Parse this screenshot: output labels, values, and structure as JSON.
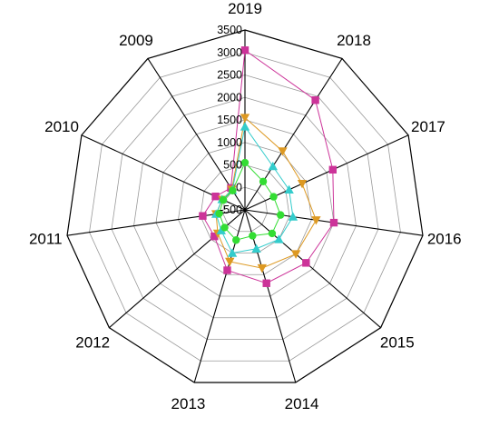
{
  "chart_data": {
    "type": "radar",
    "categories": [
      "2019",
      "2018",
      "2017",
      "2016",
      "2015",
      "2014",
      "2013",
      "2012",
      "2011",
      "2010",
      "2009"
    ],
    "ticks": [
      "-500",
      "0",
      "500",
      "1000",
      "1500",
      "2000",
      "2500",
      "3000",
      "3500"
    ],
    "rlim": [
      -500,
      3500
    ],
    "grid": true,
    "legend": "none",
    "series": [
      {
        "color": "#cc3399",
        "marker": "square",
        "values": [
          3050,
          2400,
          1650,
          1500,
          1300,
          1200,
          900,
          400,
          450,
          220,
          80
        ]
      },
      {
        "color": "#dd9922",
        "marker": "triangle-down",
        "values": [
          1550,
          1050,
          900,
          1100,
          1000,
          850,
          700,
          300,
          150,
          50,
          40
        ]
      },
      {
        "color": "#33cccc",
        "marker": "triangle-up",
        "values": [
          1350,
          650,
          580,
          580,
          500,
          400,
          500,
          200,
          150,
          60,
          20
        ]
      },
      {
        "color": "#33dd33",
        "marker": "circle",
        "values": [
          550,
          250,
          200,
          300,
          300,
          100,
          200,
          100,
          80,
          30,
          10
        ]
      }
    ]
  }
}
